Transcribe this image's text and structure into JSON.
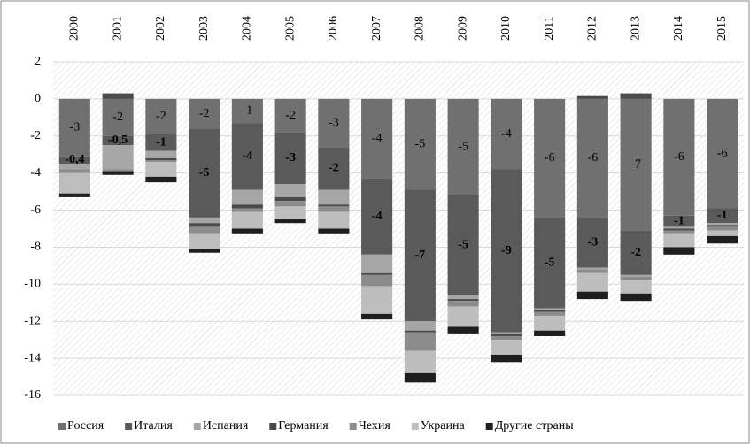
{
  "chart_data": {
    "type": "stacked_bar",
    "categories": [
      "2000",
      "2001",
      "2002",
      "2003",
      "2004",
      "2005",
      "2006",
      "2007",
      "2008",
      "2009",
      "2010",
      "2011",
      "2012",
      "2013",
      "2014",
      "2015"
    ],
    "ylim": [
      -16,
      2
    ],
    "yticks": [
      -16,
      -14,
      -12,
      -10,
      -8,
      -6,
      -4,
      -2,
      0,
      2
    ],
    "grid": true,
    "legend": "bottom",
    "series": [
      {
        "name": "Россия",
        "color": "#707070",
        "values": [
          -3.1,
          -2.0,
          -1.9,
          -1.6,
          -1.3,
          -1.8,
          -2.6,
          -4.3,
          -4.9,
          -5.2,
          -3.8,
          -6.4,
          -6.4,
          -7.1,
          -6.3,
          -5.9
        ],
        "value_labels": [
          "-3",
          "-2",
          "-2",
          "-2",
          "-1",
          "-2",
          "-3",
          "-4",
          "-5",
          "-5",
          "-4",
          "-6",
          "-6",
          "-7",
          "-6",
          "-6"
        ]
      },
      {
        "name": "Италия",
        "color": "#5a5a5a",
        "values": [
          -0.4,
          -0.5,
          -0.9,
          -4.8,
          -3.6,
          -2.8,
          -2.3,
          -4.1,
          -7.1,
          -5.4,
          -8.8,
          -4.9,
          -2.7,
          -2.4,
          -0.6,
          -0.8
        ],
        "value_labels": [
          "-0,4",
          "-0,5",
          "-1",
          "-5",
          "-4",
          "-3",
          "-2",
          "-4",
          "-7",
          "-5",
          "-9",
          "-5",
          "-3",
          "-2",
          "-1",
          "-1"
        ]
      },
      {
        "name": "Испания",
        "color": "#a6a6a6",
        "values": [
          -0.3,
          -1.3,
          -0.4,
          -0.3,
          -0.8,
          -0.7,
          -0.8,
          -1.0,
          -0.5,
          -0.2,
          -0.1,
          -0.1,
          -0.1,
          -0.1,
          -0.1,
          -0.1
        ]
      },
      {
        "name": "Германия",
        "color": "#4a4a4a",
        "values": [
          0,
          0.3,
          -0.1,
          -0.2,
          -0.2,
          -0.2,
          -0.1,
          -0.1,
          -0.1,
          -0.1,
          -0.1,
          -0.1,
          0.2,
          0.3,
          -0.1,
          -0.1
        ]
      },
      {
        "name": "Чехия",
        "color": "#8c8c8c",
        "values": [
          -0.2,
          -0.1,
          -0.1,
          -0.4,
          -0.2,
          -0.3,
          -0.3,
          -0.6,
          -1.0,
          -0.3,
          -0.2,
          -0.2,
          -0.2,
          -0.2,
          -0.2,
          -0.2
        ]
      },
      {
        "name": "Украина",
        "color": "#bdbdbd",
        "values": [
          -1.1,
          0,
          -0.8,
          -0.8,
          -0.9,
          -0.7,
          -0.9,
          -1.5,
          -1.2,
          -1.1,
          -0.8,
          -0.8,
          -1.0,
          -0.7,
          -0.7,
          -0.3
        ]
      },
      {
        "name": "Другие страны",
        "color": "#1e1e1e",
        "values": [
          -0.2,
          -0.2,
          -0.3,
          -0.2,
          -0.3,
          -0.2,
          -0.3,
          -0.3,
          -0.5,
          -0.4,
          -0.4,
          -0.3,
          -0.4,
          -0.4,
          -0.4,
          -0.4
        ]
      }
    ]
  }
}
